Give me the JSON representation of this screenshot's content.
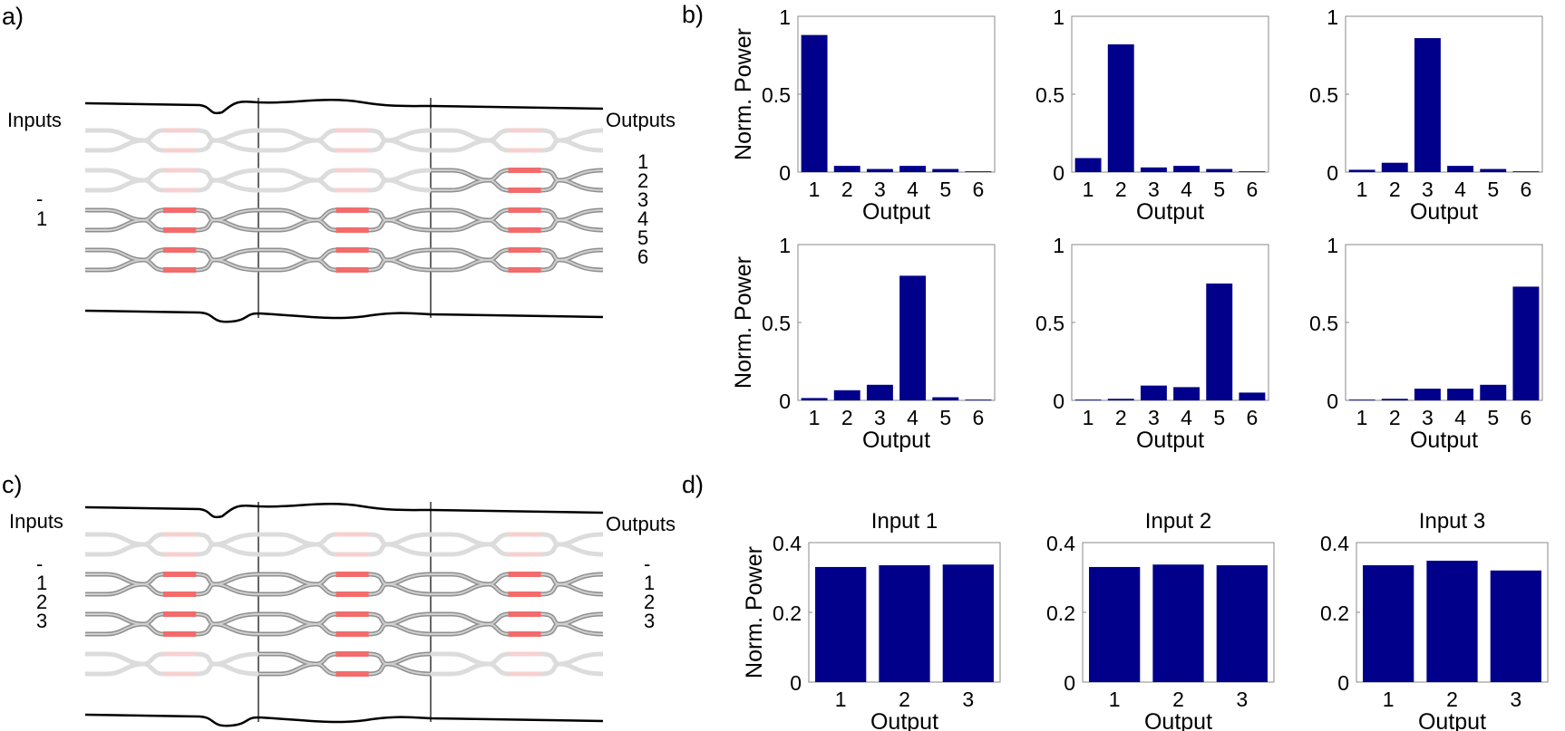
{
  "panels": {
    "a": {
      "label": "a)",
      "inputs_label": "Inputs",
      "outputs_label": "Outputs",
      "input_numbers": [
        "-",
        "1"
      ],
      "output_numbers": [
        "1",
        "2",
        "3",
        "4",
        "5",
        "6"
      ]
    },
    "b": {
      "label": "b)"
    },
    "c": {
      "label": "c)",
      "inputs_label": "Inputs",
      "outputs_label": "Outputs",
      "input_numbers": [
        "-",
        "1",
        "2",
        "3"
      ],
      "output_numbers": [
        "-",
        "1",
        "2",
        "3"
      ]
    },
    "d": {
      "label": "d)"
    }
  },
  "colors": {
    "bar": "#00008b",
    "waveguide_active": "#8f8f8f",
    "waveguide_inactive": "#dcdcdc",
    "heater_active": "#f36b6b",
    "heater_inactive": "#f7d0d0",
    "axes_frame": "#8a8a8a"
  },
  "chart_data": [
    {
      "panel": "b",
      "type": "bar",
      "title": "",
      "xlabel": "Output",
      "ylabel": "Norm. Power",
      "categories": [
        "1",
        "2",
        "3",
        "4",
        "5",
        "6"
      ],
      "values": [
        0.88,
        0.04,
        0.02,
        0.04,
        0.02,
        0.005
      ],
      "ylim": [
        0,
        1
      ],
      "yticks": [
        "0",
        "0.5",
        "1"
      ],
      "grid": false
    },
    {
      "panel": "b",
      "type": "bar",
      "title": "",
      "xlabel": "Output",
      "ylabel": "",
      "categories": [
        "1",
        "2",
        "3",
        "4",
        "5",
        "6"
      ],
      "values": [
        0.09,
        0.82,
        0.03,
        0.04,
        0.02,
        0.005
      ],
      "ylim": [
        0,
        1
      ],
      "yticks": [
        "0",
        "0.5",
        "1"
      ],
      "grid": false
    },
    {
      "panel": "b",
      "type": "bar",
      "title": "",
      "xlabel": "Output",
      "ylabel": "",
      "categories": [
        "1",
        "2",
        "3",
        "4",
        "5",
        "6"
      ],
      "values": [
        0.015,
        0.06,
        0.86,
        0.04,
        0.02,
        0.005
      ],
      "ylim": [
        0,
        1
      ],
      "yticks": [
        "0",
        "0.5",
        "1"
      ],
      "grid": false
    },
    {
      "panel": "b",
      "type": "bar",
      "title": "",
      "xlabel": "Output",
      "ylabel": "Norm. Power",
      "categories": [
        "1",
        "2",
        "3",
        "4",
        "5",
        "6"
      ],
      "values": [
        0.015,
        0.065,
        0.1,
        0.8,
        0.02,
        0.005
      ],
      "ylim": [
        0,
        1
      ],
      "yticks": [
        "0",
        "0.5",
        "1"
      ],
      "grid": false
    },
    {
      "panel": "b",
      "type": "bar",
      "title": "",
      "xlabel": "Output",
      "ylabel": "",
      "categories": [
        "1",
        "2",
        "3",
        "4",
        "5",
        "6"
      ],
      "values": [
        0.005,
        0.01,
        0.095,
        0.085,
        0.75,
        0.05
      ],
      "ylim": [
        0,
        1
      ],
      "yticks": [
        "0",
        "0.5",
        "1"
      ],
      "grid": false
    },
    {
      "panel": "b",
      "type": "bar",
      "title": "",
      "xlabel": "Output",
      "ylabel": "",
      "categories": [
        "1",
        "2",
        "3",
        "4",
        "5",
        "6"
      ],
      "values": [
        0.005,
        0.01,
        0.075,
        0.075,
        0.1,
        0.73
      ],
      "ylim": [
        0,
        1
      ],
      "yticks": [
        "0",
        "0.5",
        "1"
      ],
      "grid": false
    },
    {
      "panel": "d",
      "type": "bar",
      "title": "Input 1",
      "xlabel": "Output",
      "ylabel": "Norm. Power",
      "categories": [
        "1",
        "2",
        "3"
      ],
      "values": [
        0.33,
        0.335,
        0.337
      ],
      "ylim": [
        0,
        0.4
      ],
      "yticks": [
        "0",
        "0.2",
        "0.4"
      ],
      "grid": false
    },
    {
      "panel": "d",
      "type": "bar",
      "title": "Input 2",
      "xlabel": "Output",
      "ylabel": "",
      "categories": [
        "1",
        "2",
        "3"
      ],
      "values": [
        0.33,
        0.337,
        0.335
      ],
      "ylim": [
        0,
        0.4
      ],
      "yticks": [
        "0",
        "0.2",
        "0.4"
      ],
      "grid": false
    },
    {
      "panel": "d",
      "type": "bar",
      "title": "Input 3",
      "xlabel": "Output",
      "ylabel": "",
      "categories": [
        "1",
        "2",
        "3"
      ],
      "values": [
        0.335,
        0.348,
        0.32
      ],
      "ylim": [
        0,
        0.4
      ],
      "yticks": [
        "0",
        "0.2",
        "0.4"
      ],
      "grid": false
    }
  ]
}
